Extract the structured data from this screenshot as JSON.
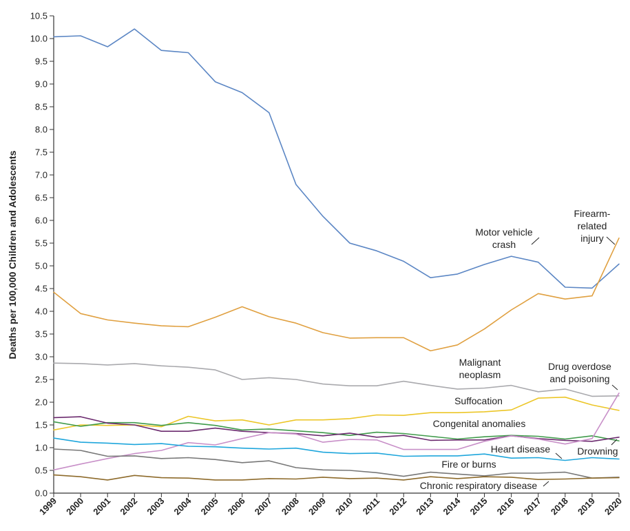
{
  "chart_data": {
    "type": "line",
    "ylabel": "Deaths per 100,000 Children and Adolescents",
    "xlabel": "",
    "ylim": [
      0,
      10.5
    ],
    "yticks": [
      "0.0",
      "0.5",
      "1.0",
      "1.5",
      "2.0",
      "2.5",
      "3.0",
      "3.5",
      "4.0",
      "4.5",
      "5.0",
      "5.5",
      "6.0",
      "6.5",
      "7.0",
      "7.5",
      "8.0",
      "8.5",
      "9.0",
      "9.5",
      "10.0",
      "10.5"
    ],
    "x": [
      "1999",
      "2000",
      "2001",
      "2002",
      "2003",
      "2004",
      "2005",
      "2006",
      "2007",
      "2008",
      "2009",
      "2010",
      "2011",
      "2012",
      "2013",
      "2014",
      "2015",
      "2016",
      "2017",
      "2018",
      "2019",
      "2020"
    ],
    "grid": false,
    "series": [
      {
        "name": "Motor vehicle crash",
        "color": "#5b86c4",
        "values": [
          10.04,
          10.06,
          9.82,
          10.21,
          9.74,
          9.69,
          9.05,
          8.81,
          8.37,
          6.79,
          6.09,
          5.5,
          5.33,
          5.1,
          4.74,
          4.82,
          5.03,
          5.21,
          5.08,
          4.53,
          4.51,
          5.04
        ]
      },
      {
        "name": "Firearm-related injury",
        "color": "#e0a040",
        "values": [
          4.42,
          3.95,
          3.81,
          3.74,
          3.68,
          3.66,
          3.87,
          4.1,
          3.88,
          3.74,
          3.53,
          3.41,
          3.42,
          3.42,
          3.13,
          3.26,
          3.61,
          4.03,
          4.39,
          4.27,
          4.34,
          5.61
        ]
      },
      {
        "name": "Malignant neoplasm",
        "color": "#a9a9ad",
        "values": [
          2.86,
          2.85,
          2.82,
          2.85,
          2.8,
          2.77,
          2.71,
          2.5,
          2.54,
          2.5,
          2.4,
          2.36,
          2.36,
          2.46,
          2.37,
          2.29,
          2.31,
          2.37,
          2.23,
          2.29,
          2.13,
          2.14
        ]
      },
      {
        "name": "Suffocation",
        "color": "#ecc627",
        "values": [
          1.39,
          1.5,
          1.49,
          1.5,
          1.46,
          1.69,
          1.59,
          1.61,
          1.5,
          1.61,
          1.61,
          1.64,
          1.72,
          1.71,
          1.77,
          1.77,
          1.79,
          1.83,
          2.09,
          2.11,
          1.94,
          1.82
        ]
      },
      {
        "name": "Congenital anomalies",
        "color": "#3f9a4a",
        "values": [
          1.57,
          1.47,
          1.55,
          1.55,
          1.49,
          1.55,
          1.49,
          1.39,
          1.41,
          1.37,
          1.33,
          1.27,
          1.34,
          1.31,
          1.25,
          1.19,
          1.24,
          1.27,
          1.25,
          1.19,
          1.26,
          1.15
        ]
      },
      {
        "name": "Drowning",
        "color": "#6b2a6e",
        "values": [
          1.66,
          1.68,
          1.54,
          1.5,
          1.36,
          1.36,
          1.43,
          1.36,
          1.33,
          1.31,
          1.26,
          1.32,
          1.23,
          1.27,
          1.16,
          1.17,
          1.17,
          1.26,
          1.2,
          1.16,
          1.14,
          1.23
        ]
      },
      {
        "name": "Drug overdose and poisoning",
        "color": "#c88fc8",
        "values": [
          0.51,
          0.64,
          0.76,
          0.87,
          0.94,
          1.11,
          1.06,
          1.2,
          1.33,
          1.3,
          1.12,
          1.18,
          1.17,
          0.96,
          0.96,
          0.96,
          1.14,
          1.26,
          1.19,
          1.08,
          1.2,
          2.2
        ]
      },
      {
        "name": "Heart disease",
        "color": "#1ea6dc",
        "values": [
          1.21,
          1.12,
          1.1,
          1.07,
          1.09,
          1.03,
          1.02,
          0.99,
          0.97,
          0.99,
          0.9,
          0.87,
          0.88,
          0.81,
          0.82,
          0.82,
          0.86,
          0.77,
          0.78,
          0.72,
          0.78,
          0.75
        ]
      },
      {
        "name": "Fire or burns",
        "color": "#777777",
        "values": [
          0.97,
          0.94,
          0.81,
          0.82,
          0.76,
          0.78,
          0.74,
          0.67,
          0.71,
          0.56,
          0.51,
          0.5,
          0.45,
          0.37,
          0.46,
          0.42,
          0.38,
          0.44,
          0.44,
          0.46,
          0.33,
          0.35
        ]
      },
      {
        "name": "Chronic respiratory disease",
        "color": "#8d6a2a",
        "values": [
          0.4,
          0.36,
          0.29,
          0.39,
          0.34,
          0.33,
          0.29,
          0.29,
          0.32,
          0.31,
          0.35,
          0.32,
          0.33,
          0.29,
          0.36,
          0.32,
          0.36,
          0.35,
          0.3,
          0.31,
          0.33,
          0.34
        ]
      }
    ]
  },
  "annotations": {
    "motor_line1": "Motor vehicle",
    "motor_line2": "crash",
    "firearm_line1": "Firearm-",
    "firearm_line2": "related",
    "firearm_line3": "injury",
    "malignant_line1": "Malignant",
    "malignant_line2": "neoplasm",
    "drug_line1": "Drug overdose",
    "drug_line2": "and poisoning",
    "suffocation": "Suffocation",
    "congenital": "Congenital anomalies",
    "heart": "Heart disease",
    "drowning": "Drowning",
    "fire": "Fire or burns",
    "chronic": "Chronic respiratory disease"
  }
}
